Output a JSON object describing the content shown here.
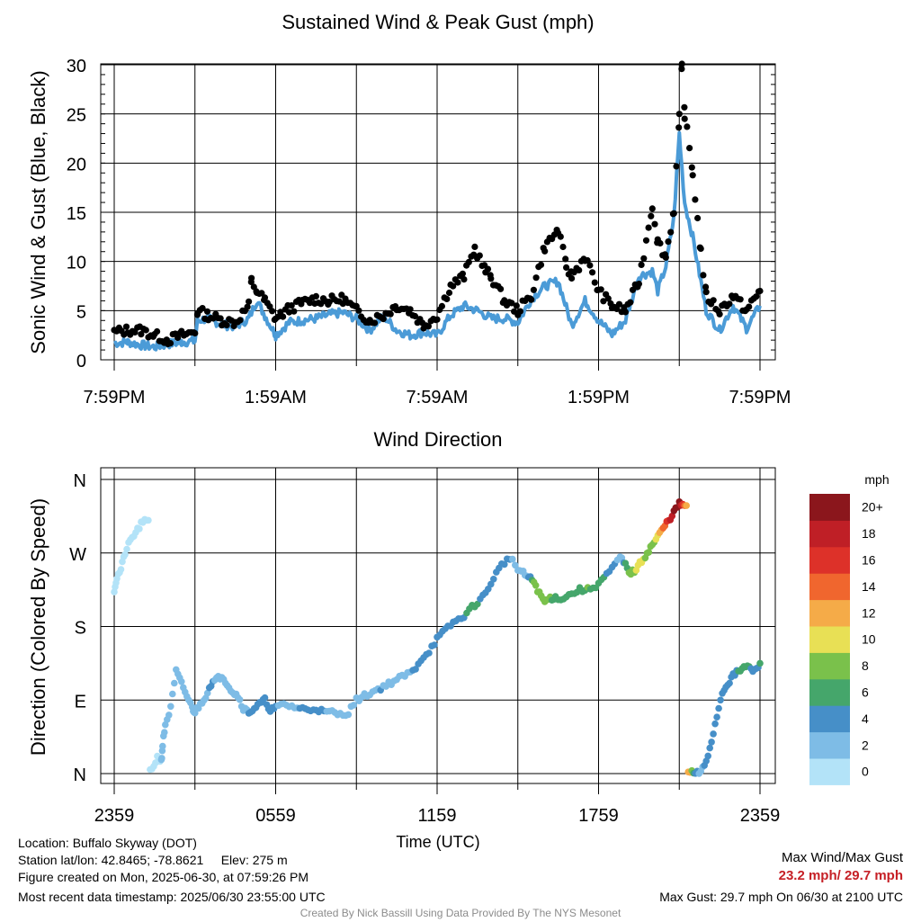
{
  "chart_data": [
    {
      "type": "line",
      "title": "Sustained Wind & Peak Gust (mph)",
      "ylabel": "Sonic Wind & Gust (Blue, Black)",
      "xlabel": "",
      "x_tick_labels": [
        "7:59PM",
        "1:59AM",
        "7:59AM",
        "1:59PM",
        "7:59PM"
      ],
      "x_hours_range": [
        0,
        24
      ],
      "ylim": [
        0,
        30
      ],
      "y_ticks": [
        0,
        5,
        10,
        15,
        20,
        25,
        30
      ],
      "grid": true,
      "series": [
        {
          "name": "Sustained Wind",
          "color": "#4b9bd7",
          "x": [
            0,
            0.5,
            1,
            1.5,
            2,
            2.5,
            3,
            3.1,
            3.5,
            4,
            4.5,
            5,
            5.3,
            5.6,
            6,
            6.5,
            7,
            7.5,
            8,
            8.5,
            9,
            9.5,
            10,
            10.5,
            11,
            11.5,
            12,
            12.5,
            13,
            13.5,
            14,
            14.5,
            15,
            15.5,
            16,
            16.5,
            17,
            17.5,
            18,
            18.5,
            19,
            19.5,
            20,
            20.2,
            20.5,
            20.8,
            21,
            21.2,
            21.5,
            21.8,
            22,
            22.5,
            23,
            23.5,
            24
          ],
          "y": [
            1.7,
            1.8,
            1.5,
            1.3,
            1.6,
            1.8,
            1.9,
            4.0,
            4.2,
            3.6,
            3.4,
            4.2,
            6.0,
            4.5,
            2.5,
            3.8,
            4.0,
            4.2,
            4.6,
            4.8,
            4.2,
            3.0,
            4.5,
            3.0,
            2.5,
            2.8,
            2.5,
            4.5,
            5.5,
            5.0,
            4.2,
            4.2,
            3.8,
            6.2,
            7.5,
            8.0,
            3.5,
            6.0,
            4.0,
            2.6,
            4.0,
            8.5,
            9.0,
            7.0,
            9.5,
            14.5,
            23.0,
            16.0,
            12.5,
            8.0,
            5.0,
            3.0,
            5.5,
            3.2,
            5.5
          ]
        },
        {
          "name": "Peak Gust",
          "color": "#000000",
          "x": [
            0,
            0.5,
            1,
            1.5,
            2,
            2.5,
            3,
            3.1,
            3.5,
            4,
            4.5,
            5,
            5.1,
            5.3,
            5.6,
            6,
            6.5,
            7,
            7.5,
            8,
            8.5,
            9,
            9.5,
            10,
            10.5,
            11,
            11.5,
            12,
            12.5,
            13,
            13.4,
            13.8,
            14,
            14.5,
            15,
            15.5,
            16,
            16.5,
            16.8,
            17,
            17.5,
            18,
            18.5,
            19,
            19.5,
            20,
            20.2,
            20.5,
            20.8,
            21,
            21.1,
            21.2,
            21.5,
            21.8,
            22,
            22.5,
            23,
            23.5,
            24
          ],
          "y": [
            2.8,
            3.0,
            3.0,
            2.5,
            2.0,
            2.5,
            2.8,
            5.0,
            4.5,
            4.0,
            3.8,
            5.5,
            8.0,
            7.0,
            6.0,
            4.2,
            5.2,
            5.8,
            6.2,
            6.0,
            6.2,
            5.0,
            4.0,
            4.5,
            5.5,
            5.0,
            3.5,
            4.5,
            7.5,
            8.5,
            11.3,
            9.0,
            8.5,
            6.0,
            5.0,
            6.5,
            11.5,
            13.2,
            9.5,
            8.5,
            10.5,
            7.0,
            5.5,
            5.0,
            8.0,
            15.7,
            12.0,
            10.5,
            15.3,
            24.5,
            29.7,
            25.0,
            19.0,
            11.0,
            6.5,
            5.0,
            6.5,
            5.0,
            7.0
          ]
        }
      ]
    },
    {
      "type": "scatter",
      "title": "Wind Direction",
      "ylabel": "Direction (Colored By Speed)",
      "xlabel": "Time (UTC)",
      "x_tick_labels": [
        "2359",
        "0559",
        "1159",
        "1759",
        "2359"
      ],
      "x_hours_range": [
        0,
        24
      ],
      "y_tick_labels": [
        "N",
        "E",
        "S",
        "W",
        "N"
      ],
      "ylim": [
        0,
        360
      ],
      "grid": true,
      "colorbar": {
        "title": "mph",
        "labels": [
          "0",
          "2",
          "4",
          "6",
          "8",
          "10",
          "12",
          "14",
          "16",
          "18",
          "20+"
        ],
        "colors": [
          "#b3e3f8",
          "#7ebce6",
          "#468fc8",
          "#45a66b",
          "#7ac14b",
          "#e8e055",
          "#f5ab48",
          "#f0662e",
          "#dd3129",
          "#bf1f26",
          "#8b161c"
        ]
      },
      "x": [
        0,
        0.1,
        0.25,
        0.4,
        0.6,
        0.8,
        1.0,
        1.2,
        1.4,
        1.6,
        1.75,
        1.8,
        1.9,
        2.1,
        2.3,
        2.5,
        2.7,
        2.9,
        3.0,
        3.2,
        3.4,
        3.6,
        3.8,
        4.0,
        4.2,
        4.4,
        4.6,
        4.8,
        5.0,
        5.2,
        5.4,
        5.6,
        5.8,
        6.0,
        6.3,
        6.6,
        6.9,
        7.2,
        7.5,
        7.8,
        8.1,
        8.4,
        8.7,
        9.0,
        9.3,
        9.6,
        9.9,
        10.2,
        10.5,
        10.8,
        11.1,
        11.4,
        11.7,
        12.0,
        12.3,
        12.6,
        12.9,
        13.2,
        13.5,
        13.8,
        14.1,
        14.4,
        14.7,
        15.0,
        15.2,
        15.4,
        15.6,
        15.8,
        16.0,
        16.2,
        16.4,
        16.7,
        17.0,
        17.3,
        17.6,
        17.9,
        18.2,
        18.5,
        18.8,
        19.0,
        19.2,
        19.4,
        19.6,
        19.8,
        20.0,
        20.2,
        20.4,
        20.6,
        20.8,
        21.0,
        21.2,
        21.4,
        21.6,
        21.8,
        22.0,
        22.2,
        22.4,
        22.6,
        22.8,
        23.0,
        23.2,
        23.4,
        23.6,
        23.8,
        24.0
      ],
      "y": [
        225,
        240,
        250,
        270,
        285,
        295,
        305,
        310,
        5,
        20,
        15,
        35,
        60,
        80,
        125,
        110,
        95,
        80,
        75,
        85,
        95,
        110,
        115,
        120,
        110,
        100,
        95,
        80,
        75,
        80,
        85,
        90,
        78,
        80,
        85,
        82,
        80,
        78,
        80,
        75,
        75,
        72,
        75,
        90,
        95,
        100,
        105,
        110,
        115,
        120,
        125,
        140,
        150,
        165,
        175,
        185,
        190,
        200,
        210,
        220,
        240,
        255,
        265,
        250,
        245,
        240,
        235,
        220,
        210,
        215,
        215,
        215,
        220,
        225,
        225,
        230,
        240,
        250,
        265,
        255,
        245,
        250,
        260,
        270,
        280,
        290,
        300,
        310,
        320,
        330,
        328,
        2,
        0,
        1,
        15,
        40,
        70,
        100,
        110,
        120,
        125,
        130,
        130,
        125,
        135
      ],
      "speed": [
        1,
        1,
        1,
        1,
        1,
        0,
        0,
        0,
        1,
        1,
        2,
        2,
        2,
        3,
        3,
        3,
        2,
        2,
        2,
        2,
        3,
        5,
        3,
        3,
        3,
        3,
        3,
        3,
        4,
        4,
        4,
        4,
        4,
        4,
        3,
        3,
        4,
        4,
        4,
        4,
        3,
        3,
        3,
        2,
        3,
        3,
        4,
        3,
        3,
        3,
        4,
        4,
        4,
        5,
        5,
        5,
        5,
        7,
        6,
        4,
        4,
        4,
        4,
        3,
        2,
        4,
        8,
        9,
        8,
        8,
        7,
        6,
        6,
        7,
        8,
        6,
        6,
        5,
        2,
        6,
        9,
        10,
        11,
        9,
        8,
        11,
        15,
        17,
        20,
        22,
        14,
        12,
        5,
        3,
        5,
        5,
        5,
        4,
        4,
        5,
        6,
        7,
        6,
        5,
        6
      ]
    }
  ],
  "info": {
    "location": "Location: Buffalo Skyway (DOT)",
    "station": "Station lat/lon: 42.8465; -78.8621     Elev: 275 m",
    "created": "Figure created on Mon, 2025-06-30, at 07:59:26 PM",
    "recent": "Most recent data timestamp: 2025/06/30 23:55:00 UTC",
    "max_title": "Max Wind/Max Gust",
    "max_values": "23.2 mph/ 29.7 mph",
    "max_gust": "Max Gust: 29.7 mph On 06/30 at 2100 UTC",
    "credit": "Created By Nick Bassill Using Data Provided By The NYS Mesonet"
  },
  "colors": {
    "sustained": "#4b9bd7",
    "gust": "#000000",
    "max_values": "#c62026",
    "credit": "#8c8c8c"
  }
}
